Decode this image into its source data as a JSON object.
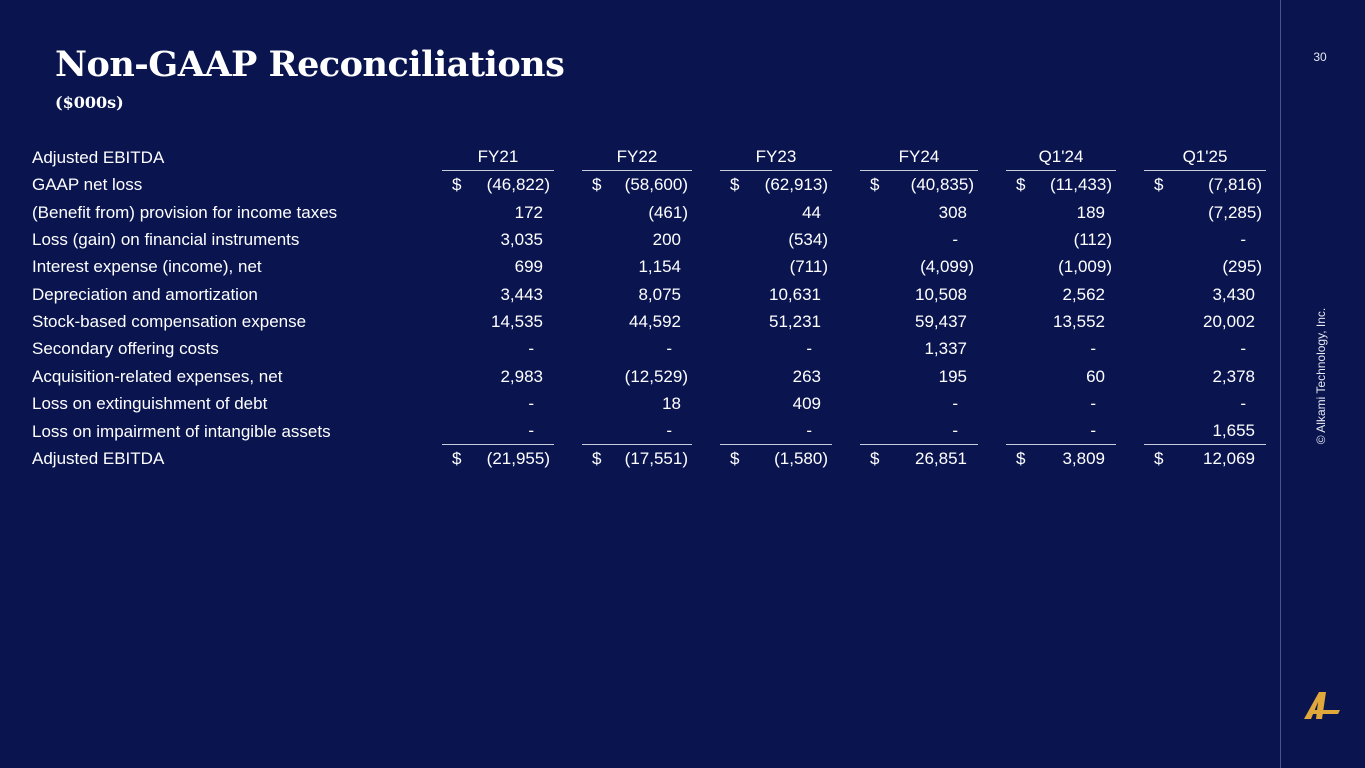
{
  "header": {
    "title": "Non-GAAP Reconciliations",
    "subtitle": "($000s)",
    "page_number": "30"
  },
  "footer": {
    "copyright": "© Alkami Technology, Inc.",
    "logo_icon": "alkami-logo-icon",
    "logo_color": "#e0a73a"
  },
  "table": {
    "title": "Adjusted EBITDA",
    "columns": [
      "FY21",
      "FY22",
      "FY23",
      "FY24",
      "Q1'24",
      "Q1'25"
    ],
    "rows": [
      {
        "label": "GAAP net loss",
        "currency": true,
        "values": [
          "(46,822)",
          "(58,600)",
          "(62,913)",
          "(40,835)",
          "(11,433)",
          "(7,816)"
        ]
      },
      {
        "label": "(Benefit from) provision for income taxes",
        "currency": false,
        "values": [
          "172",
          "(461)",
          "44",
          "308",
          "189",
          "(7,285)"
        ]
      },
      {
        "label": "Loss (gain) on financial instruments",
        "currency": false,
        "values": [
          "3,035",
          "200",
          "(534)",
          "-",
          "(112)",
          "-"
        ]
      },
      {
        "label": "Interest expense (income), net",
        "currency": false,
        "values": [
          "699",
          "1,154",
          "(711)",
          "(4,099)",
          "(1,009)",
          "(295)"
        ]
      },
      {
        "label": "Depreciation and amortization",
        "currency": false,
        "values": [
          "3,443",
          "8,075",
          "10,631",
          "10,508",
          "2,562",
          "3,430"
        ]
      },
      {
        "label": "Stock-based compensation expense",
        "currency": false,
        "values": [
          "14,535",
          "44,592",
          "51,231",
          "59,437",
          "13,552",
          "20,002"
        ]
      },
      {
        "label": "Secondary offering costs",
        "currency": false,
        "values": [
          "-",
          "-",
          "-",
          "1,337",
          "-",
          "-"
        ]
      },
      {
        "label": "Acquisition-related expenses, net",
        "currency": false,
        "values": [
          "2,983",
          "(12,529)",
          "263",
          "195",
          "60",
          "2,378"
        ]
      },
      {
        "label": "Loss on extinguishment of debt",
        "currency": false,
        "values": [
          "-",
          "18",
          "409",
          "-",
          "-",
          "-"
        ]
      },
      {
        "label": "Loss on impairment of intangible assets",
        "currency": false,
        "values": [
          "-",
          "-",
          "-",
          "-",
          "-",
          "1,655"
        ]
      },
      {
        "label": "Adjusted EBITDA",
        "currency": true,
        "values": [
          "(21,955)",
          "(17,551)",
          "(1,580)",
          "26,851",
          "3,809",
          "12,069"
        ]
      }
    ],
    "currency_symbol": "$"
  }
}
